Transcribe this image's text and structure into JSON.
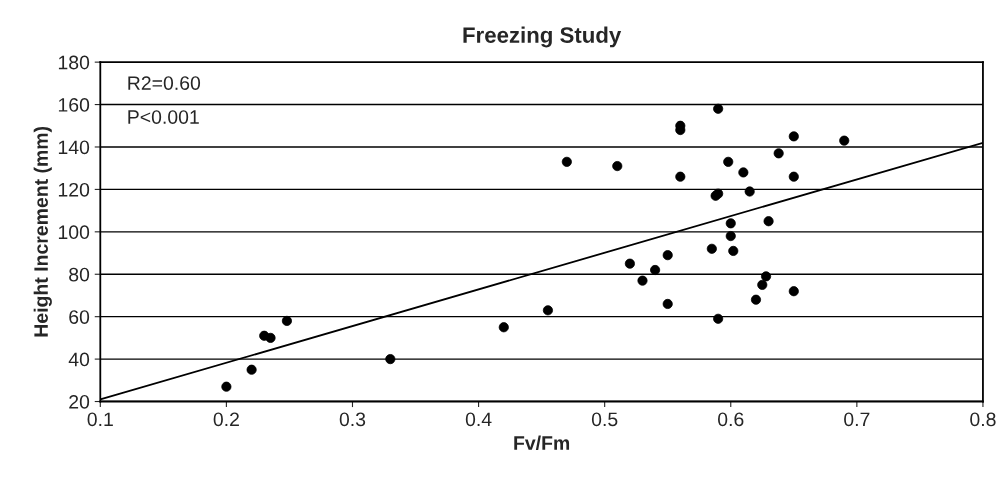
{
  "chart_data": {
    "type": "scatter",
    "title": "Freezing Study",
    "xlabel": "Fv/Fm",
    "ylabel": "Height Increment (mm)",
    "annotations": [
      "R2=0.60",
      "P<0.001"
    ],
    "series": [
      {
        "color": "#000000",
        "marker": "circle",
        "x": [
          0.2,
          0.22,
          0.23,
          0.235,
          0.248,
          0.33,
          0.42,
          0.455,
          0.47,
          0.51,
          0.52,
          0.53,
          0.54,
          0.55,
          0.55,
          0.56,
          0.56,
          0.56,
          0.585,
          0.588,
          0.59,
          0.59,
          0.59,
          0.598,
          0.6,
          0.6,
          0.602,
          0.61,
          0.615,
          0.62,
          0.625,
          0.628,
          0.63,
          0.638,
          0.65,
          0.65,
          0.65,
          0.69
        ],
        "values": [
          27,
          35,
          51,
          50,
          58,
          40,
          55,
          63,
          133,
          131,
          85,
          77,
          82,
          89,
          66,
          150,
          148,
          126,
          92,
          117,
          118,
          158,
          59,
          133,
          104,
          98,
          91,
          128,
          119,
          68,
          75,
          79,
          105,
          137,
          145,
          126,
          72,
          143
        ]
      },
      {
        "type": "line",
        "color": "#000000",
        "x": [
          0.1,
          0.8
        ],
        "values": [
          21,
          142
        ]
      }
    ],
    "xlim": [
      0.1,
      0.8
    ],
    "xticks": [
      0.1,
      0.2,
      0.3,
      0.4,
      0.5,
      0.6,
      0.7,
      0.8
    ],
    "ylim": [
      20,
      180
    ],
    "yticks": [
      20,
      40,
      60,
      80,
      100,
      120,
      140,
      160,
      180
    ],
    "grid": "y"
  }
}
